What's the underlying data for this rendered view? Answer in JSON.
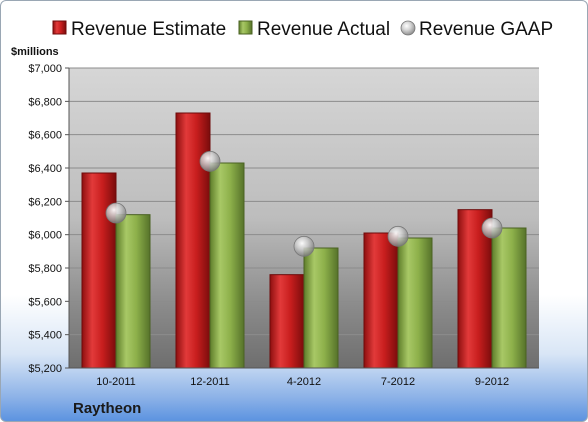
{
  "chart_data": {
    "type": "bar",
    "unit_label": "$millions",
    "company": "Raytheon",
    "categories": [
      "10-2011",
      "12-2011",
      "4-2012",
      "7-2012",
      "9-2012"
    ],
    "series": [
      {
        "name": "Revenue Estimate",
        "kind": "bar",
        "color": "#cc1f1f",
        "values": [
          6370,
          6730,
          5760,
          6010,
          6150
        ]
      },
      {
        "name": "Revenue Actual",
        "kind": "bar",
        "color": "#8db04a",
        "values": [
          6120,
          6430,
          5920,
          5980,
          6040
        ]
      },
      {
        "name": "Revenue GAAP",
        "kind": "marker",
        "color": "#b8b8b8",
        "values": [
          6130,
          6440,
          5930,
          5990,
          6040
        ]
      }
    ],
    "ylim": [
      5200,
      7000
    ],
    "yticks": [
      "$5,200",
      "$5,400",
      "$5,600",
      "$5,800",
      "$6,000",
      "$6,200",
      "$6,400",
      "$6,600",
      "$6,800",
      "$7,000"
    ],
    "ytick_values": [
      5200,
      5400,
      5600,
      5800,
      6000,
      6200,
      6400,
      6600,
      6800,
      7000
    ],
    "grid": true,
    "legend_position": "top"
  }
}
